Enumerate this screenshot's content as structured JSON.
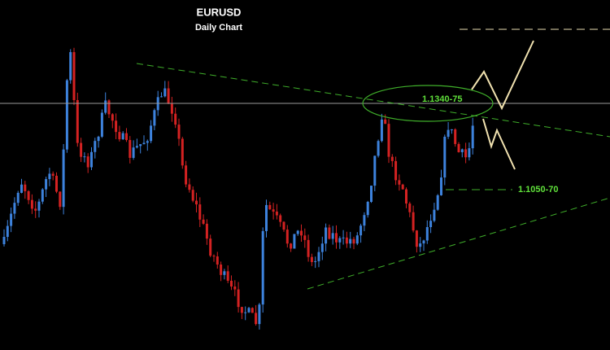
{
  "header": {
    "title": "EURUSD",
    "subtitle": "Daily Chart"
  },
  "annotations": [
    {
      "label": "1.1340-75"
    },
    {
      "label": "1.1050-70"
    }
  ]
}
